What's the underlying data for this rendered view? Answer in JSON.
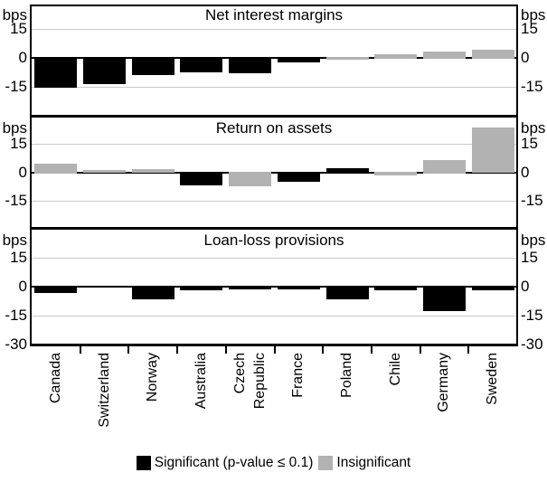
{
  "chart_data": {
    "type": "bar",
    "unit_label": "bps",
    "categories": [
      "Canada",
      "Switzerland",
      "Norway",
      "Australia",
      "Czech\nRepublic",
      "France",
      "Poland",
      "Chile",
      "Germany",
      "Sweden"
    ],
    "y_ticks": [
      15,
      0,
      -15
    ],
    "y_min_tick": -30,
    "grid_values": [
      15,
      -15
    ],
    "ylim": [
      -30,
      27
    ],
    "legend_position": "bottom-center",
    "grid": true,
    "panels": [
      {
        "title": "Net interest margins",
        "values": [
          -15.5,
          -13.5,
          -9,
          -7.5,
          -8,
          -2.5,
          -1,
          2,
          3.5,
          4
        ],
        "significant": [
          true,
          true,
          true,
          true,
          true,
          true,
          false,
          false,
          false,
          false
        ]
      },
      {
        "title": "Return on assets",
        "values": [
          4.5,
          1,
          1.5,
          -6.5,
          -7,
          -4.5,
          2,
          -1.5,
          6.5,
          23
        ],
        "significant": [
          false,
          false,
          false,
          true,
          false,
          true,
          true,
          false,
          false,
          false
        ]
      },
      {
        "title": "Loan-loss provisions",
        "values": [
          -3.5,
          -0.5,
          -6.5,
          -2,
          -1.5,
          -1.5,
          -6.5,
          -2,
          -12.5,
          -2
        ],
        "significant": [
          true,
          true,
          true,
          true,
          true,
          true,
          true,
          true,
          true,
          true
        ]
      }
    ],
    "legend": [
      {
        "label": "Significant (p-value ≤ 0.1)",
        "key": "significant"
      },
      {
        "label": "Insignificant",
        "key": "insignificant"
      }
    ]
  },
  "colors": {
    "significant": "#000000",
    "insignificant": "#b2b2b2",
    "gridline": "#c9c9c9",
    "axis": "#000000",
    "background": "#ffffff"
  }
}
